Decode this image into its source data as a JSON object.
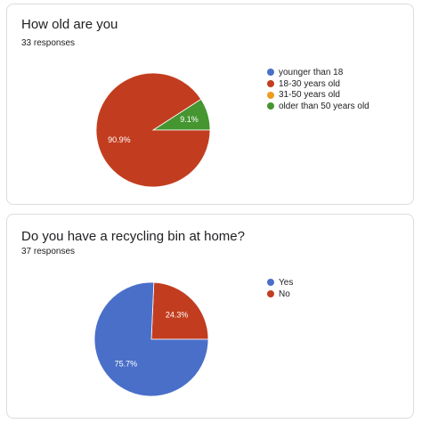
{
  "questions": [
    {
      "title": "How old are you",
      "responses": "33 responses"
    },
    {
      "title": "Do you have a recycling bin at home?",
      "responses": "37 responses"
    }
  ],
  "chart_data": [
    {
      "type": "pie",
      "categories": [
        "younger than 18",
        "18-30 years old",
        "31-50 years old",
        "older than 50 years old"
      ],
      "values": [
        0,
        90.9,
        0,
        9.1
      ],
      "slice_labels": [
        "",
        "90.9%",
        "",
        "9.1%"
      ],
      "colors": [
        "#4a6fc9",
        "#c23d1f",
        "#ef9b1e",
        "#459531"
      ],
      "legend": "right"
    },
    {
      "type": "pie",
      "categories": [
        "Yes",
        "No"
      ],
      "values": [
        75.7,
        24.3
      ],
      "slice_labels": [
        "75.7%",
        "24.3%"
      ],
      "colors": [
        "#4a6fc9",
        "#c23d1f"
      ],
      "legend": "right"
    }
  ]
}
